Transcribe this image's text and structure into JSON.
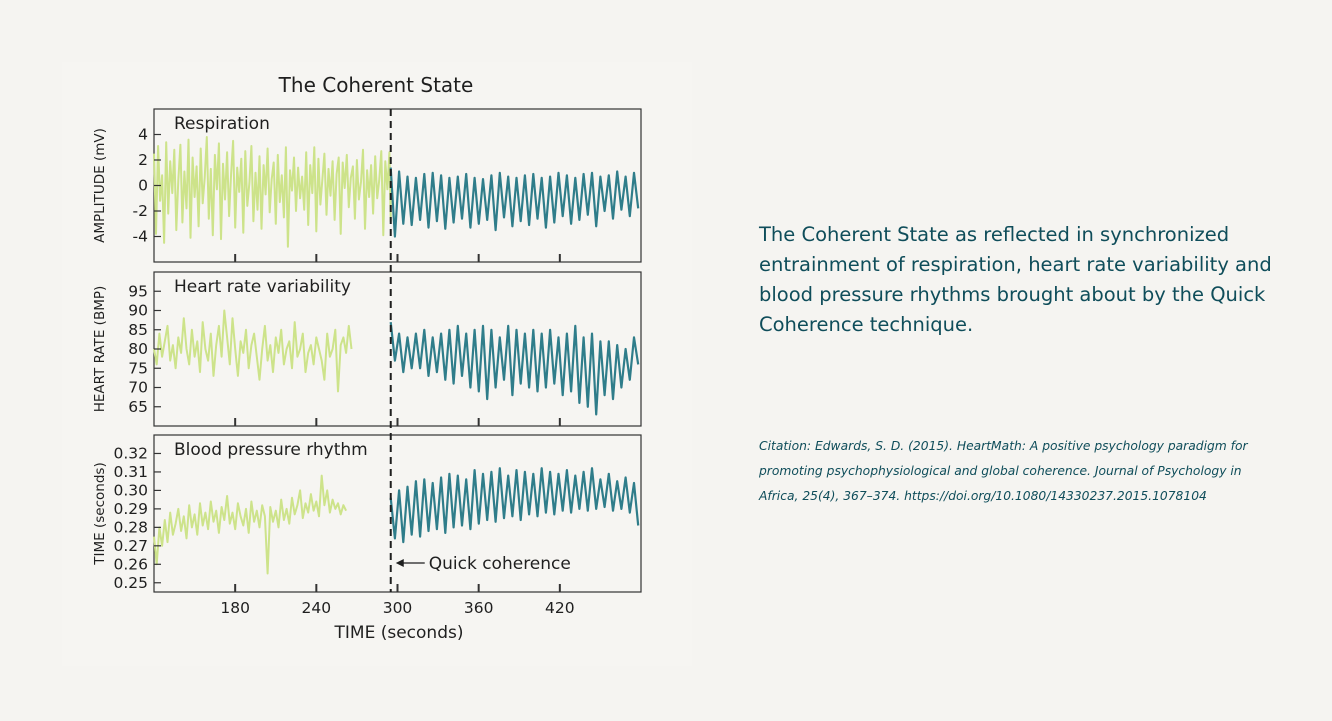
{
  "caption": "The Coherent State as reflected in synchronized entrainment of respiration, heart rate variability and blood pressure rhythms brought about by the Quick Coherence technique.",
  "citation": "Citation: Edwards, S. D. (2015). HeartMath: A positive psychology paradigm for promoting psychophysiological and global coherence. Journal of Psychology in Africa, 25(4), 367–374. https://doi.org/10.1080/14330237.2015.1078104",
  "colors": {
    "baseline": "#cde38a",
    "coherent": "#2f7d8a",
    "frame": "#333333",
    "caption": "#0f4d5a"
  },
  "chart_data": {
    "type": "line",
    "title": "The Coherent State",
    "xlabel": "TIME (seconds)",
    "xlim": [
      120,
      480
    ],
    "xticks": [
      180,
      240,
      300,
      360,
      420
    ],
    "annotation": {
      "x": 295,
      "label": "Quick coherence"
    },
    "grid": false,
    "panels": [
      {
        "name": "Respiration",
        "ylabel": "AMPLITUDE (mV)",
        "ylim": [
          -6,
          6
        ],
        "yticks": [
          "4",
          "2",
          "0",
          "-2",
          "-4"
        ],
        "ytick_values": [
          4,
          2,
          0,
          -2,
          -4
        ],
        "before": {
          "step": 1.5,
          "values": [
            2.5,
            -3.8,
            3.1,
            -1.2,
            0.8,
            -4.5,
            3.4,
            -2.2,
            1.9,
            -0.6,
            2.8,
            -3.5,
            0.4,
            3.2,
            -2.9,
            1.1,
            -1.8,
            3.6,
            -4.1,
            2.2,
            -0.9,
            1.5,
            -3.2,
            2.9,
            -1.4,
            0.6,
            3.8,
            -2.6,
            1.3,
            -3.9,
            2.4,
            -0.3,
            3.3,
            -4.2,
            1.7,
            -1.1,
            2.6,
            -2.4,
            0.9,
            3.5,
            -3.3,
            1.4,
            -0.5,
            2.1,
            -3.7,
            2.7,
            -1.6,
            0.2,
            3.1,
            -2.8,
            1.0,
            -1.9,
            2.3,
            -3.4,
            1.6,
            -0.7,
            2.9,
            -2.1,
            0.5,
            1.8,
            -3.0,
            2.4,
            -1.3,
            0.8,
            -2.5,
            3.0,
            -4.8,
            1.2,
            -0.4,
            2.2,
            -2.0,
            1.4,
            -1.0,
            0.7,
            -1.9,
            2.6,
            -3.1,
            1.6,
            -0.6,
            3.0,
            -3.6,
            2.1,
            -1.5,
            0.5,
            2.5,
            -2.3,
            1.3,
            -0.8,
            1.9,
            -2.7,
            0.9,
            2.2,
            -3.8,
            1.8,
            -0.2,
            2.4,
            -1.7,
            0.6,
            1.5,
            -2.6,
            2.0,
            -1.1,
            0.3,
            2.8,
            -3.4,
            1.2,
            -0.9,
            1.6,
            -2.2,
            2.3,
            -1.0,
            0.4,
            2.7,
            -3.9,
            1.9,
            -0.3,
            2.6,
            -2.8,
            1.1
          ]
        },
        "after": {
          "period": 6.2,
          "count": 30,
          "high": [
            1.4,
            1.1,
            0.7,
            0.6,
            0.9,
            1.0,
            0.8,
            0.6,
            0.7,
            0.9,
            0.6,
            0.5,
            0.8,
            1.0,
            0.7,
            0.6,
            0.8,
            0.9,
            0.6,
            0.7,
            1.0,
            0.8,
            0.6,
            0.9,
            1.0,
            0.7,
            0.8,
            1.1,
            0.7,
            1.0
          ],
          "low": [
            -4.0,
            -3.0,
            -3.1,
            -2.7,
            -3.3,
            -2.8,
            -3.4,
            -2.9,
            -2.6,
            -3.3,
            -3.0,
            -2.7,
            -3.5,
            -2.5,
            -3.2,
            -2.8,
            -3.1,
            -2.6,
            -3.3,
            -2.9,
            -2.4,
            -3.0,
            -2.7,
            -2.3,
            -3.2,
            -2.0,
            -2.6,
            -1.9,
            -2.4,
            -1.8
          ]
        }
      },
      {
        "name": "Heart rate variability",
        "ylabel": "HEART RATE (BMP)",
        "ylim": [
          60,
          100
        ],
        "yticks": [
          "95",
          "90",
          "85",
          "80",
          "75",
          "70",
          "65"
        ],
        "ytick_values": [
          95,
          90,
          85,
          80,
          75,
          70,
          65
        ],
        "before": {
          "step": 2.0,
          "values": [
            80,
            76,
            84,
            78,
            82,
            86,
            77,
            81,
            75,
            83,
            79,
            88,
            80,
            76,
            85,
            78,
            82,
            74,
            87,
            80,
            77,
            84,
            73,
            81,
            86,
            78,
            90,
            83,
            76,
            88,
            80,
            73,
            82,
            79,
            85,
            75,
            81,
            84,
            78,
            72,
            80,
            86,
            77,
            81,
            74,
            83,
            79,
            85,
            76,
            80,
            82,
            75,
            87,
            78,
            80,
            84,
            74,
            79,
            81,
            76,
            83,
            80,
            77,
            72,
            84,
            78,
            80,
            85,
            69,
            81,
            83,
            79,
            86,
            80
          ]
        },
        "after": {
          "period": 6.2,
          "count": 30,
          "high": [
            87,
            84,
            83,
            84,
            85,
            83,
            84,
            85,
            86,
            84,
            85,
            86,
            85,
            83,
            86,
            85,
            84,
            85,
            84,
            85,
            83,
            84,
            86,
            83,
            84,
            82,
            82,
            81,
            80,
            83
          ],
          "low": [
            77,
            74,
            75,
            75,
            73,
            74,
            72,
            71,
            73,
            70,
            69,
            67,
            70,
            72,
            68,
            71,
            70,
            69,
            70,
            71,
            68,
            69,
            66,
            65,
            63,
            68,
            67,
            70,
            72,
            76
          ]
        }
      },
      {
        "name": "Blood pressure rhythm",
        "ylabel": "TIME (seconds)",
        "ylim": [
          0.245,
          0.33
        ],
        "yticks": [
          "0.32",
          "0.31",
          "0.30",
          "0.29",
          "0.28",
          "0.27",
          "0.26",
          "0.25"
        ],
        "ytick_values": [
          0.32,
          0.31,
          0.3,
          0.29,
          0.28,
          0.27,
          0.26,
          0.25
        ],
        "before": {
          "step": 2.0,
          "values": [
            0.275,
            0.26,
            0.28,
            0.27,
            0.284,
            0.272,
            0.288,
            0.276,
            0.282,
            0.29,
            0.278,
            0.286,
            0.274,
            0.292,
            0.28,
            0.287,
            0.276,
            0.293,
            0.281,
            0.288,
            0.279,
            0.294,
            0.283,
            0.289,
            0.277,
            0.291,
            0.284,
            0.297,
            0.282,
            0.288,
            0.279,
            0.293,
            0.286,
            0.281,
            0.29,
            0.277,
            0.294,
            0.283,
            0.289,
            0.28,
            0.292,
            0.286,
            0.255,
            0.291,
            0.283,
            0.289,
            0.28,
            0.295,
            0.284,
            0.29,
            0.282,
            0.296,
            0.287,
            0.292,
            0.3,
            0.285,
            0.293,
            0.288,
            0.298,
            0.289,
            0.294,
            0.286,
            0.308,
            0.292,
            0.3,
            0.288,
            0.295,
            0.29,
            0.293,
            0.287,
            0.292,
            0.289
          ]
        },
        "after": {
          "period": 6.2,
          "count": 30,
          "high": [
            0.296,
            0.3,
            0.302,
            0.305,
            0.306,
            0.304,
            0.307,
            0.309,
            0.308,
            0.306,
            0.311,
            0.309,
            0.31,
            0.312,
            0.308,
            0.311,
            0.31,
            0.309,
            0.312,
            0.31,
            0.309,
            0.311,
            0.308,
            0.31,
            0.312,
            0.306,
            0.309,
            0.305,
            0.307,
            0.304
          ],
          "low": [
            0.274,
            0.272,
            0.276,
            0.275,
            0.278,
            0.279,
            0.277,
            0.28,
            0.281,
            0.279,
            0.282,
            0.284,
            0.283,
            0.285,
            0.286,
            0.284,
            0.287,
            0.286,
            0.288,
            0.287,
            0.289,
            0.288,
            0.29,
            0.289,
            0.29,
            0.291,
            0.289,
            0.29,
            0.288,
            0.281
          ]
        }
      }
    ]
  }
}
